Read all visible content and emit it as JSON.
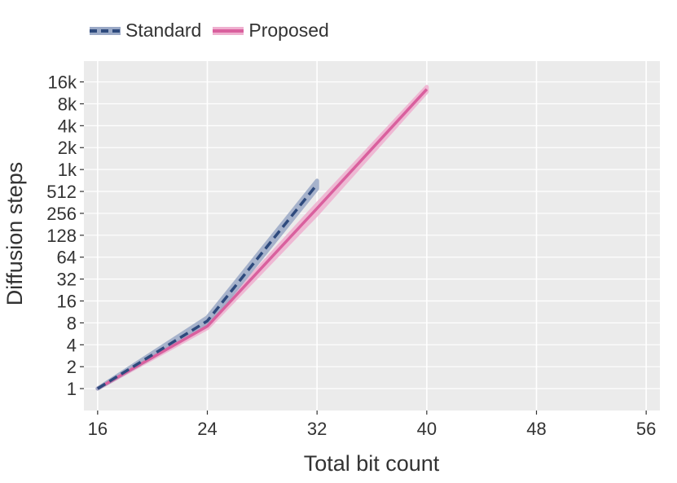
{
  "chart_data": {
    "type": "line",
    "title": "",
    "xlabel": "Total bit count",
    "ylabel": "Diffusion steps",
    "xlim": [
      15,
      57
    ],
    "ylim_log2": [
      -1,
      14.95
    ],
    "yscale": "log2",
    "grid": true,
    "legend_placement": "top-left",
    "x_ticks": [
      16,
      24,
      32,
      40,
      48,
      56
    ],
    "x_tick_labels": [
      "16",
      "24",
      "32",
      "40",
      "48",
      "56"
    ],
    "y_ticks": [
      1,
      2,
      4,
      8,
      16,
      32,
      64,
      128,
      256,
      512,
      1024,
      2048,
      4096,
      8192,
      16384
    ],
    "y_tick_labels": [
      "1",
      "2",
      "4",
      "8",
      "16",
      "32",
      "64",
      "128",
      "256",
      "512",
      "1k",
      "2k",
      "4k",
      "8k",
      "16k"
    ],
    "series": [
      {
        "name": "Standard",
        "color": "#2e4a7d",
        "band_color": "#9aa9c6",
        "style": "dashed",
        "x": [
          16,
          24,
          32
        ],
        "y": [
          1,
          8.5,
          640
        ],
        "band_low": [
          1,
          7.5,
          560
        ],
        "band_high": [
          1,
          9.5,
          720
        ]
      },
      {
        "name": "Proposed",
        "color": "#d9609e",
        "band_color": "#efb0cf",
        "style": "solid",
        "x": [
          16,
          24,
          32,
          40
        ],
        "y": [
          1,
          7.2,
          300,
          13000
        ],
        "band_low": [
          1,
          6.8,
          250,
          12000
        ],
        "band_high": [
          1,
          7.6,
          340,
          14000
        ]
      }
    ]
  }
}
